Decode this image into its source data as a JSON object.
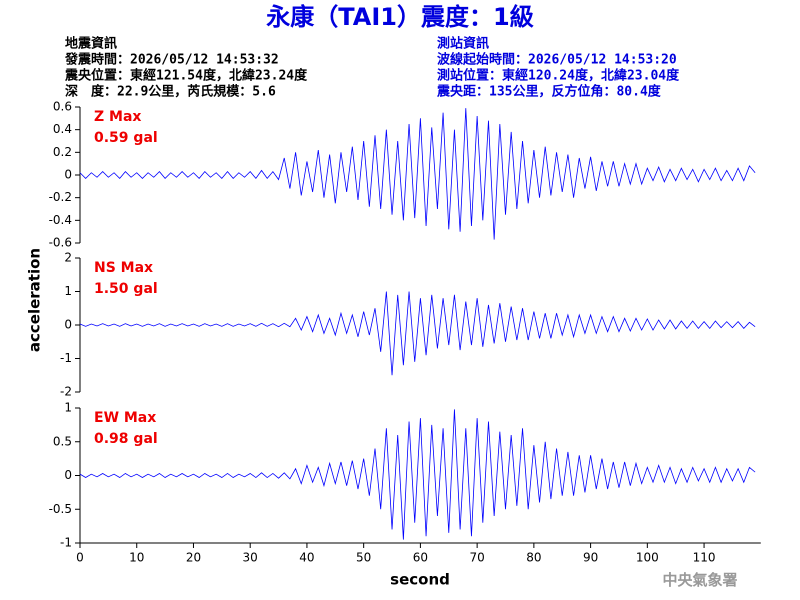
{
  "title": "永康（TAI1）震度：1級",
  "info_left": [
    "地震資訊",
    "發震時間：2026/05/12 14:53:32",
    "震央位置：東經121.54度，北緯23.24度",
    "深　度：22.9公里，芮氏規模：5.6"
  ],
  "info_right": [
    "測站資訊",
    "波線起始時間：2026/05/12 14:53:20",
    "測站位置：東經120.24度，北緯23.04度",
    "震央距：135公里，反方位角：80.4度"
  ],
  "ylabel": "acceleration",
  "footer": "中央氣象署",
  "chart_data": [
    {
      "type": "line",
      "color": "#0000ff",
      "annotation": [
        "Z Max",
        "0.59 gal"
      ],
      "xlim": [
        0,
        120
      ],
      "ylim": [
        -0.6,
        0.6
      ],
      "yticks": [
        0.6,
        0.4,
        0.2,
        0,
        -0.2,
        -0.4,
        -0.6
      ],
      "x": [
        0,
        1,
        2,
        3,
        4,
        5,
        6,
        7,
        8,
        9,
        10,
        11,
        12,
        13,
        14,
        15,
        16,
        17,
        18,
        19,
        20,
        21,
        22,
        23,
        24,
        25,
        26,
        27,
        28,
        29,
        30,
        31,
        32,
        33,
        34,
        35,
        36,
        37,
        38,
        39,
        40,
        41,
        42,
        43,
        44,
        45,
        46,
        47,
        48,
        49,
        50,
        51,
        52,
        53,
        54,
        55,
        56,
        57,
        58,
        59,
        60,
        61,
        62,
        63,
        64,
        65,
        66,
        67,
        68,
        69,
        70,
        71,
        72,
        73,
        74,
        75,
        76,
        77,
        78,
        79,
        80,
        81,
        82,
        83,
        84,
        85,
        86,
        87,
        88,
        89,
        90,
        91,
        92,
        93,
        94,
        95,
        96,
        97,
        98,
        99,
        100,
        101,
        102,
        103,
        104,
        105,
        106,
        107,
        108,
        109,
        110,
        111,
        112,
        113,
        114,
        115,
        116,
        117,
        118,
        119
      ],
      "values": [
        0.02,
        -0.03,
        0.02,
        -0.02,
        0.03,
        -0.02,
        0.02,
        -0.03,
        0.03,
        -0.02,
        0.02,
        -0.03,
        0.02,
        -0.02,
        0.03,
        -0.03,
        0.02,
        -0.02,
        0.03,
        -0.02,
        0.02,
        -0.03,
        0.03,
        -0.02,
        0.02,
        -0.03,
        0.03,
        -0.03,
        0.02,
        -0.02,
        0.03,
        -0.03,
        0.04,
        -0.03,
        0.03,
        -0.04,
        0.15,
        -0.12,
        0.2,
        -0.18,
        0.12,
        -0.15,
        0.22,
        -0.2,
        0.18,
        -0.25,
        0.2,
        -0.15,
        0.25,
        -0.22,
        0.3,
        -0.28,
        0.35,
        -0.3,
        0.4,
        -0.35,
        0.3,
        -0.4,
        0.45,
        -0.38,
        0.5,
        -0.45,
        0.42,
        -0.3,
        0.55,
        -0.48,
        0.4,
        -0.5,
        0.59,
        -0.45,
        0.52,
        -0.4,
        0.48,
        -0.57,
        0.45,
        -0.35,
        0.38,
        -0.3,
        0.3,
        -0.25,
        0.22,
        -0.2,
        0.25,
        -0.18,
        0.2,
        -0.15,
        0.18,
        -0.2,
        0.15,
        -0.12,
        0.16,
        -0.14,
        0.12,
        -0.1,
        0.12,
        -0.1,
        0.1,
        -0.08,
        0.1,
        -0.08,
        0.06,
        -0.05,
        0.07,
        -0.06,
        0.05,
        -0.05,
        0.06,
        -0.04,
        0.05,
        -0.06,
        0.05,
        -0.04,
        0.06,
        -0.05,
        0.04,
        -0.05,
        0.06,
        -0.05,
        0.08,
        0.02
      ]
    },
    {
      "type": "line",
      "color": "#0000ff",
      "annotation": [
        "NS Max",
        "1.50 gal"
      ],
      "xlim": [
        0,
        120
      ],
      "ylim": [
        -2,
        2
      ],
      "yticks": [
        2,
        1,
        0,
        -1,
        -2
      ],
      "x": [
        0,
        1,
        2,
        3,
        4,
        5,
        6,
        7,
        8,
        9,
        10,
        11,
        12,
        13,
        14,
        15,
        16,
        17,
        18,
        19,
        20,
        21,
        22,
        23,
        24,
        25,
        26,
        27,
        28,
        29,
        30,
        31,
        32,
        33,
        34,
        35,
        36,
        37,
        38,
        39,
        40,
        41,
        42,
        43,
        44,
        45,
        46,
        47,
        48,
        49,
        50,
        51,
        52,
        53,
        54,
        55,
        56,
        57,
        58,
        59,
        60,
        61,
        62,
        63,
        64,
        65,
        66,
        67,
        68,
        69,
        70,
        71,
        72,
        73,
        74,
        75,
        76,
        77,
        78,
        79,
        80,
        81,
        82,
        83,
        84,
        85,
        86,
        87,
        88,
        89,
        90,
        91,
        92,
        93,
        94,
        95,
        96,
        97,
        98,
        99,
        100,
        101,
        102,
        103,
        104,
        105,
        106,
        107,
        108,
        109,
        110,
        111,
        112,
        113,
        114,
        115,
        116,
        117,
        118,
        119
      ],
      "values": [
        0.03,
        -0.04,
        0.03,
        -0.03,
        0.04,
        -0.03,
        0.03,
        -0.04,
        0.04,
        -0.03,
        0.03,
        -0.04,
        0.03,
        -0.03,
        0.04,
        -0.04,
        0.03,
        -0.03,
        0.04,
        -0.03,
        0.03,
        -0.04,
        0.04,
        -0.03,
        0.03,
        -0.04,
        0.04,
        -0.04,
        0.03,
        -0.03,
        0.04,
        -0.04,
        0.05,
        -0.04,
        0.04,
        -0.05,
        0.05,
        -0.05,
        0.2,
        -0.15,
        0.25,
        -0.2,
        0.3,
        -0.25,
        0.2,
        -0.3,
        0.35,
        -0.25,
        0.3,
        -0.35,
        0.4,
        -0.3,
        0.5,
        -0.8,
        1.0,
        -1.5,
        0.9,
        -1.2,
        1.0,
        -1.1,
        0.8,
        -0.9,
        0.9,
        -0.7,
        0.8,
        -0.6,
        0.9,
        -0.75,
        0.7,
        -0.6,
        0.8,
        -0.65,
        0.6,
        -0.55,
        0.65,
        -0.5,
        0.55,
        -0.45,
        0.5,
        -0.45,
        0.4,
        -0.4,
        0.35,
        -0.4,
        0.35,
        -0.3,
        0.3,
        -0.35,
        0.3,
        -0.25,
        0.3,
        -0.25,
        0.25,
        -0.2,
        0.25,
        -0.2,
        0.2,
        -0.18,
        0.2,
        -0.15,
        0.18,
        -0.15,
        0.15,
        -0.12,
        0.15,
        -0.12,
        0.12,
        -0.1,
        0.12,
        -0.1,
        0.1,
        -0.1,
        0.12,
        -0.08,
        0.1,
        -0.08,
        0.1,
        -0.1,
        0.08,
        -0.05
      ]
    },
    {
      "type": "line",
      "color": "#0000ff",
      "annotation": [
        "EW Max",
        "0.98 gal"
      ],
      "xlim": [
        0,
        120
      ],
      "ylim": [
        -1,
        1
      ],
      "yticks": [
        1,
        0.5,
        0,
        -0.5,
        -1
      ],
      "xticks": [
        0,
        10,
        20,
        30,
        40,
        50,
        60,
        70,
        80,
        90,
        100,
        110
      ],
      "xlabel": "second",
      "x": [
        0,
        1,
        2,
        3,
        4,
        5,
        6,
        7,
        8,
        9,
        10,
        11,
        12,
        13,
        14,
        15,
        16,
        17,
        18,
        19,
        20,
        21,
        22,
        23,
        24,
        25,
        26,
        27,
        28,
        29,
        30,
        31,
        32,
        33,
        34,
        35,
        36,
        37,
        38,
        39,
        40,
        41,
        42,
        43,
        44,
        45,
        46,
        47,
        48,
        49,
        50,
        51,
        52,
        53,
        54,
        55,
        56,
        57,
        58,
        59,
        60,
        61,
        62,
        63,
        64,
        65,
        66,
        67,
        68,
        69,
        70,
        71,
        72,
        73,
        74,
        75,
        76,
        77,
        78,
        79,
        80,
        81,
        82,
        83,
        84,
        85,
        86,
        87,
        88,
        89,
        90,
        91,
        92,
        93,
        94,
        95,
        96,
        97,
        98,
        99,
        100,
        101,
        102,
        103,
        104,
        105,
        106,
        107,
        108,
        109,
        110,
        111,
        112,
        113,
        114,
        115,
        116,
        117,
        118,
        119
      ],
      "values": [
        0.02,
        -0.03,
        0.02,
        -0.02,
        0.03,
        -0.02,
        0.02,
        -0.03,
        0.03,
        -0.02,
        0.02,
        -0.03,
        0.02,
        -0.02,
        0.03,
        -0.03,
        0.02,
        -0.02,
        0.03,
        -0.02,
        0.02,
        -0.03,
        0.03,
        -0.02,
        0.02,
        -0.03,
        0.03,
        -0.03,
        0.02,
        -0.02,
        0.03,
        -0.03,
        0.04,
        -0.03,
        0.03,
        -0.04,
        0.04,
        -0.05,
        0.1,
        -0.12,
        0.15,
        -0.1,
        0.12,
        -0.15,
        0.18,
        -0.12,
        0.2,
        -0.15,
        0.22,
        -0.2,
        0.25,
        -0.3,
        0.4,
        -0.5,
        0.7,
        -0.8,
        0.6,
        -0.95,
        0.8,
        -0.7,
        0.85,
        -0.9,
        0.75,
        -0.6,
        0.7,
        -0.85,
        0.98,
        -0.8,
        0.7,
        -0.9,
        0.85,
        -0.7,
        0.8,
        -0.6,
        0.65,
        -0.5,
        0.6,
        -0.45,
        0.7,
        -0.5,
        0.45,
        -0.4,
        0.5,
        -0.35,
        0.4,
        -0.3,
        0.35,
        -0.3,
        0.3,
        -0.25,
        0.3,
        -0.2,
        0.25,
        -0.2,
        0.2,
        -0.18,
        0.2,
        -0.15,
        0.18,
        -0.12,
        0.12,
        -0.1,
        0.15,
        -0.1,
        0.12,
        -0.12,
        0.1,
        -0.1,
        0.12,
        -0.08,
        0.1,
        -0.1,
        0.12,
        -0.1,
        0.1,
        -0.08,
        0.1,
        -0.1,
        0.12,
        0.05
      ]
    }
  ]
}
